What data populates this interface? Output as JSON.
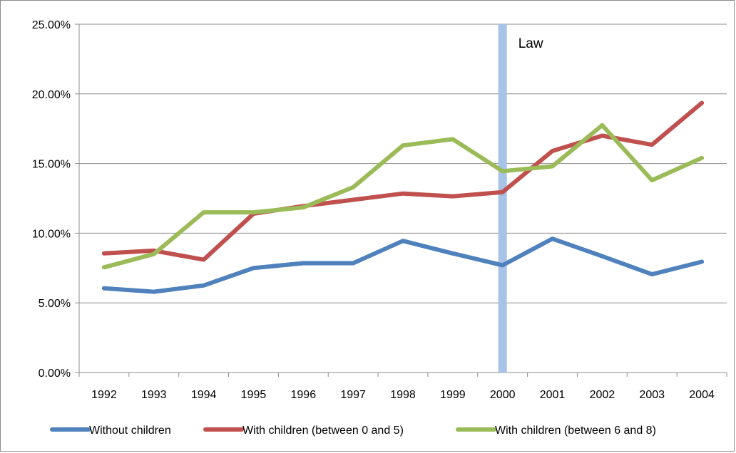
{
  "chart_data": {
    "type": "line",
    "categories": [
      "1992",
      "1993",
      "1994",
      "1995",
      "1996",
      "1997",
      "1998",
      "1999",
      "2000",
      "2001",
      "2002",
      "2003",
      "2004"
    ],
    "ylim": [
      0,
      25
    ],
    "y_ticks": [
      "0.00%",
      "5.00%",
      "10.00%",
      "15.00%",
      "20.00%",
      "25.00%"
    ],
    "y_tick_values": [
      0,
      5,
      10,
      15,
      20,
      25
    ],
    "grid": "horizontal",
    "legend_position": "bottom",
    "series": [
      {
        "name": "Without children",
        "color": "#4f81bd",
        "values": [
          6.05,
          5.8,
          6.25,
          7.5,
          7.85,
          7.85,
          9.45,
          8.55,
          7.7,
          9.6,
          8.35,
          7.05,
          7.95
        ]
      },
      {
        "name": "With children (between 0 and 5)",
        "color": "#c0504d",
        "values": [
          8.55,
          8.75,
          8.1,
          11.4,
          11.95,
          12.4,
          12.85,
          12.65,
          12.95,
          15.9,
          17.0,
          16.35,
          19.35
        ]
      },
      {
        "name": "With children (between 6 and 8)",
        "color": "#9bbb59",
        "values": [
          7.55,
          8.5,
          11.5,
          11.5,
          11.85,
          13.3,
          16.3,
          16.75,
          14.45,
          14.8,
          17.75,
          13.8,
          15.4
        ]
      }
    ],
    "annotation": {
      "label": "Law",
      "x": "2000",
      "color": "#a7c3e8"
    }
  }
}
